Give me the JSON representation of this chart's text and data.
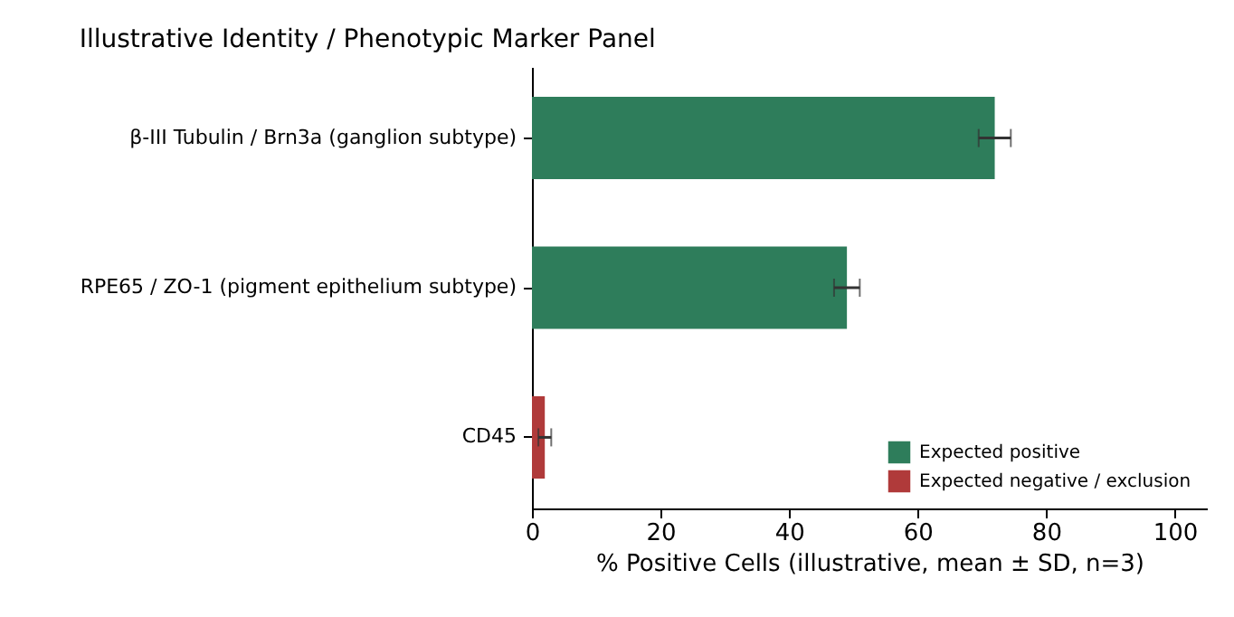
{
  "chart_data": {
    "type": "bar",
    "orientation": "horizontal",
    "title": "Illustrative Identity / Phenotypic Marker Panel",
    "xlabel": "% Positive Cells (illustrative, mean ± SD, n=3)",
    "categories": [
      "β-III Tubulin / Brn3a (ganglion subtype)",
      "RPE65 / ZO-1 (pigment epithelium subtype)",
      "CD45"
    ],
    "series": [
      {
        "name": "Expected positive",
        "color": "#2e7d5b",
        "values": [
          72,
          49,
          null
        ],
        "errors": [
          2.5,
          2,
          null
        ]
      },
      {
        "name": "Expected negative / exclusion",
        "color": "#b03a3a",
        "values": [
          null,
          null,
          2
        ],
        "errors": [
          null,
          null,
          1
        ]
      }
    ],
    "xlim": [
      0,
      105
    ],
    "xticks": [
      0,
      20,
      40,
      60,
      80,
      100
    ],
    "grid": false,
    "legend": "bottom right"
  }
}
